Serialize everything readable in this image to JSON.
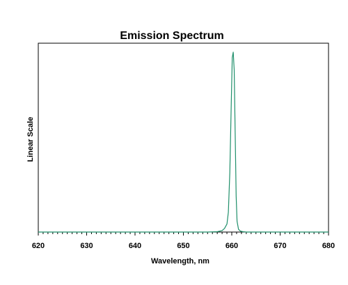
{
  "chart_data": {
    "type": "line",
    "title": "Emission Spectrum",
    "xlabel": "Wavelength, nm",
    "ylabel": "Linear Scale",
    "xlim": [
      620,
      680
    ],
    "ylim": [
      0,
      1.05
    ],
    "xticks": [
      "620",
      "630",
      "640",
      "650",
      "660",
      "670",
      "680"
    ],
    "grid": false,
    "series": [
      {
        "color": "#1f8f6a",
        "x": [
          620,
          626,
          628,
          630,
          640,
          650,
          655,
          657,
          658,
          658.5,
          659,
          659.3,
          659.6,
          659.9,
          660.1,
          660.3,
          660.5,
          660.7,
          660.9,
          661.1,
          661.4,
          661.8,
          662.3,
          663,
          665,
          670,
          680
        ],
        "y": [
          0,
          0,
          0,
          0,
          0,
          0,
          0,
          0.002,
          0.008,
          0.02,
          0.045,
          0.11,
          0.33,
          0.72,
          0.97,
          1.0,
          0.9,
          0.55,
          0.2,
          0.06,
          0.015,
          0.005,
          0.002,
          0,
          0,
          0,
          0
        ]
      }
    ]
  }
}
